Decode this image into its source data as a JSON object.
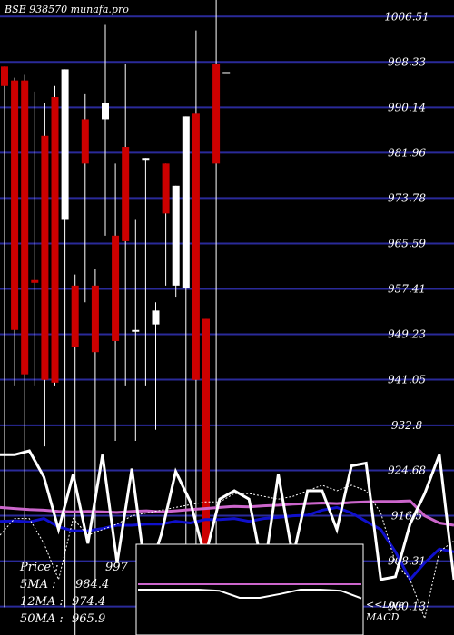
{
  "header": {
    "title": "BSE 938570  munafa.pro"
  },
  "stats": {
    "price_label": "Price   :",
    "price_value": "997",
    "ma5_label": "5MA :",
    "ma5_value": "984.4",
    "ma12_label": "12MA :",
    "ma12_value": "974.4",
    "ma50_label": "50MA :",
    "ma50_value": "965.9"
  },
  "macd_label": {
    "line1": "<<Live",
    "line2": "MACD"
  },
  "colors": {
    "background": "#000000",
    "grid": "#2a2a9a",
    "up_candle": "#ffffff",
    "down_candle": "#cc0000",
    "ma_pink": "#cc66cc",
    "ma_blue": "#1010cc",
    "macd_line": "#ffffff",
    "macd_signal": "#cc66cc"
  },
  "chart_data": {
    "type": "candlestick",
    "ylim": [
      895.0,
      1009.5
    ],
    "yticks": [
      1006.51,
      998.33,
      990.14,
      981.96,
      973.78,
      965.59,
      957.41,
      949.23,
      941.05,
      932.8,
      924.68,
      916.5,
      908.31,
      900.13
    ],
    "candles": [
      {
        "open": 997.5,
        "high": 997.5,
        "close": 994.0,
        "low": 900.0
      },
      {
        "open": 995.0,
        "high": 995.5,
        "close": 950.0,
        "low": 940.0
      },
      {
        "open": 995.0,
        "high": 996.0,
        "close": 942.0,
        "low": 900.0
      },
      {
        "open": 959.0,
        "high": 993.0,
        "close": 958.5,
        "low": 940.0
      },
      {
        "open": 985.0,
        "high": 991.0,
        "close": 941.0,
        "low": 929.0
      },
      {
        "open": 992.0,
        "high": 994.0,
        "close": 940.5,
        "low": 940.0
      },
      {
        "open": 970.0,
        "high": 997.0,
        "close": 997.0,
        "low": 900.0
      },
      {
        "open": 958.0,
        "high": 960.0,
        "close": 947.0,
        "low": 895.0
      },
      {
        "open": 988.0,
        "high": 992.5,
        "close": 980.0,
        "low": 955.0
      },
      {
        "open": 958.0,
        "high": 961.0,
        "close": 946.0,
        "low": 905.0
      },
      {
        "open": 988.0,
        "high": 1005.0,
        "close": 991.0,
        "low": 967.0
      },
      {
        "open": 967.0,
        "high": 980.0,
        "close": 948.0,
        "low": 930.0
      },
      {
        "open": 983.0,
        "high": 998.0,
        "close": 966.0,
        "low": 940.0
      },
      {
        "open": 950.0,
        "high": 970.0,
        "close": 950.0,
        "low": 930.0
      },
      {
        "open": 981.0,
        "high": 981.0,
        "close": 981.0,
        "low": 940.0
      },
      {
        "open": 951.0,
        "high": 955.0,
        "close": 953.5,
        "low": 932.0
      },
      {
        "open": 980.0,
        "high": 980.0,
        "close": 971.0,
        "low": 958.0
      },
      {
        "open": 958.0,
        "high": 976.0,
        "close": 976.0,
        "low": 956.0
      },
      {
        "open": 957.5,
        "high": 988.5,
        "close": 988.5,
        "low": 905.0
      },
      {
        "open": 989.0,
        "high": 1004.0,
        "close": 941.0,
        "low": 900.0
      },
      {
        "open": 952.0,
        "high": 952.0,
        "close": 910.0,
        "low": 900.0
      },
      {
        "open": 998.0,
        "high": 1010.0,
        "close": 980.0,
        "low": 900.0
      },
      {
        "open": 996.5,
        "high": 996.5,
        "close": 996.5,
        "low": 996.5
      }
    ],
    "ma_lines": [
      {
        "name": "pink",
        "color": "#cc66cc",
        "values": [
          918,
          917.8,
          917.6,
          917.5,
          917.3,
          917.2,
          917.3,
          917.2,
          917.1,
          917.3,
          917.4,
          917.2,
          917.4,
          917.6,
          917.8,
          918.0,
          918.2,
          918.1,
          918.3,
          918.4,
          918.6,
          918.7,
          918.8,
          918.7,
          918.9,
          919.0,
          919.1,
          919.1,
          919.2,
          916.5,
          915.2,
          914.8
        ]
      },
      {
        "name": "blue",
        "color": "#1010cc",
        "values": [
          915.5,
          915.6,
          915.4,
          916.0,
          914.5,
          913.8,
          913.8,
          914.2,
          914.8,
          914.8,
          915.0,
          915.0,
          915.5,
          915.2,
          915.8,
          915.8,
          916.0,
          915.5,
          916.0,
          916.2,
          916.5,
          916.6,
          917.5,
          918.0,
          917.0,
          915.5,
          914.0,
          910.0,
          905.0,
          908.0,
          910.5,
          910.0
        ]
      },
      {
        "name": "white",
        "color": "#ffffff",
        "values": [
          927.5,
          927.5,
          928.2,
          923.5,
          914.0,
          924.0,
          911.5,
          927.5,
          908.0,
          925.0,
          905.0,
          913.0,
          924.5,
          919.0,
          909.0,
          919.5,
          921.0,
          919.5,
          906.0,
          924.0,
          909.0,
          921.0,
          921.0,
          914.0,
          925.5,
          926.0,
          905.0,
          905.5,
          915.0,
          920.5,
          927.5,
          905.0
        ]
      },
      {
        "name": "dotted",
        "color": "#ffffff",
        "values": [
          913.0,
          916.0,
          916.0,
          911.5,
          905.0,
          916.0,
          913.0,
          914.0,
          915.0,
          916.5,
          917.0,
          917.5,
          918.0,
          918.5,
          919.0,
          919.0,
          920.5,
          920.5,
          920.0,
          919.5,
          920.0,
          921.0,
          922.0,
          921.0,
          922.0,
          921.0,
          917.0,
          908.0,
          905.0,
          898.0,
          910.0,
          912.0
        ]
      }
    ],
    "macd": {
      "macd": [
        0,
        0,
        0,
        0,
        -0.2,
        -1.5,
        -1.5,
        -0.8,
        0,
        0,
        -0.2,
        -1.6
      ],
      "signal": [
        1,
        1,
        1,
        1,
        1,
        1,
        1,
        1,
        1,
        1,
        1,
        1
      ]
    }
  }
}
